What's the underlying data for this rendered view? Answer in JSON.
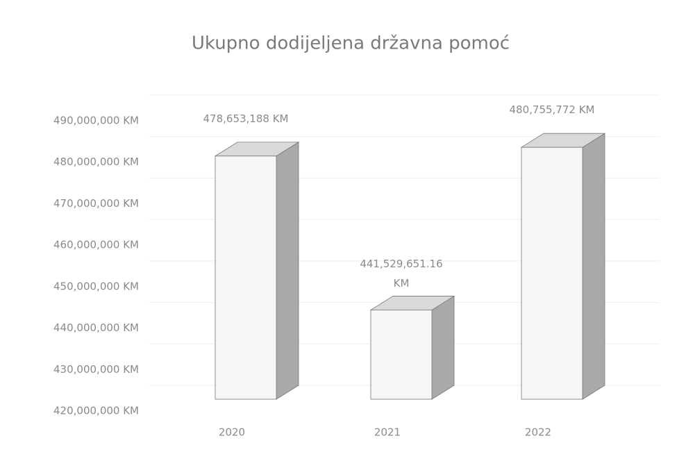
{
  "chart_data": {
    "type": "bar3d",
    "title": "Ukupno dodijeljena državna pomoć",
    "categories": [
      "2020",
      "2021",
      "2022"
    ],
    "values": [
      478653188,
      441529651.16,
      480755772
    ],
    "value_labels": [
      "478,653,188 KM",
      "441,529,651.16 KM",
      "480,755,772 KM"
    ],
    "color": "#f6f6f6",
    "ylim": [
      420000000,
      490000000
    ],
    "yticks": [
      {
        "value": 420000000,
        "label": "420,000,000 KM"
      },
      {
        "value": 430000000,
        "label": "430,000,000 KM"
      },
      {
        "value": 440000000,
        "label": "440,000,000 KM"
      },
      {
        "value": 450000000,
        "label": "450,000,000 KM"
      },
      {
        "value": 460000000,
        "label": "460,000,000 KM"
      },
      {
        "value": 470000000,
        "label": "470,000,000 KM"
      },
      {
        "value": 480000000,
        "label": "480,000,000 KM"
      },
      {
        "value": 490000000,
        "label": "490,000,000 KM"
      }
    ],
    "grid": true
  }
}
